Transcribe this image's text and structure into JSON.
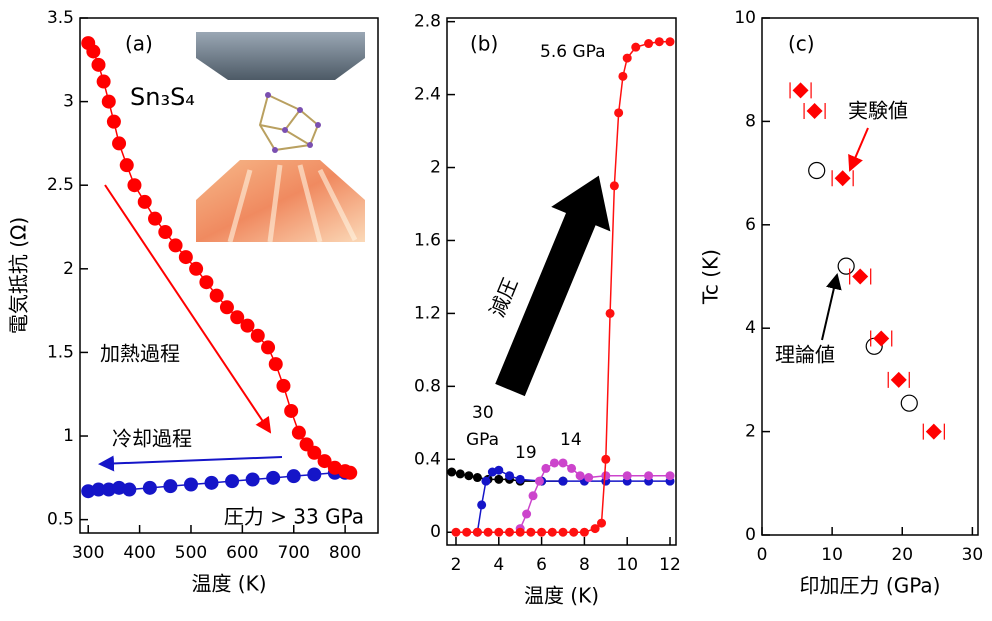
{
  "chart_data": [
    {
      "type": "line",
      "x_label": "温度 (K)",
      "y_label": "電気抵抗 (Ω)",
      "xlim": [
        284,
        864
      ],
      "ylim": [
        0.42,
        3.5
      ],
      "xticks": [
        300,
        400,
        500,
        600,
        700,
        800
      ],
      "yticks": [
        0.5,
        1,
        1.5,
        2,
        2.5,
        3,
        3.5
      ],
      "series": [
        {
          "name": "加熱過程",
          "color": "#ff0000",
          "x": [
            300,
            310,
            320,
            330,
            340,
            350,
            360,
            375,
            390,
            410,
            430,
            450,
            470,
            490,
            510,
            530,
            550,
            570,
            590,
            610,
            630,
            650,
            665,
            680,
            695,
            710,
            725,
            740,
            760,
            780,
            800,
            810
          ],
          "values": [
            3.35,
            3.3,
            3.22,
            3.12,
            3.0,
            2.88,
            2.75,
            2.62,
            2.5,
            2.4,
            2.3,
            2.22,
            2.14,
            2.07,
            2.0,
            1.92,
            1.84,
            1.77,
            1.71,
            1.66,
            1.6,
            1.53,
            1.43,
            1.3,
            1.15,
            1.02,
            0.95,
            0.9,
            0.85,
            0.81,
            0.79,
            0.78
          ]
        },
        {
          "name": "冷却過程",
          "color": "#1515c8",
          "x": [
            300,
            320,
            340,
            360,
            380,
            420,
            460,
            500,
            540,
            580,
            620,
            660,
            700,
            740,
            780,
            800
          ],
          "values": [
            0.67,
            0.68,
            0.68,
            0.69,
            0.68,
            0.69,
            0.7,
            0.71,
            0.72,
            0.73,
            0.74,
            0.75,
            0.76,
            0.77,
            0.78,
            0.78
          ]
        }
      ],
      "annotations": {
        "panel": "(a)",
        "sample": "Sn₃S₄",
        "pressure": "圧力 > 33 GPa"
      }
    },
    {
      "type": "line",
      "x_label": "温度 (K)",
      "xlim": [
        1.58,
        12.28
      ],
      "ylim": [
        -0.07,
        2.82
      ],
      "xticks": [
        2,
        4,
        6,
        8,
        10,
        12
      ],
      "yticks": [
        0,
        0.4,
        0.8,
        1.2,
        1.6,
        2,
        2.4,
        2.8
      ],
      "series": [
        {
          "name": "5.6 GPa",
          "color": "#ff1010",
          "x": [
            2,
            2.5,
            3,
            3.5,
            4,
            4.5,
            5,
            5.5,
            6,
            6.5,
            7,
            7.5,
            8,
            8.5,
            8.8,
            9.0,
            9.2,
            9.4,
            9.6,
            9.8,
            10.0,
            10.4,
            11,
            11.5,
            12
          ],
          "values": [
            0,
            0,
            0,
            0,
            0,
            0,
            0,
            0,
            0,
            0,
            0,
            0,
            0,
            0.02,
            0.05,
            0.4,
            1.2,
            1.9,
            2.3,
            2.5,
            2.6,
            2.66,
            2.68,
            2.69,
            2.69
          ]
        },
        {
          "name": "14",
          "color": "#cc44cc",
          "x": [
            5.0,
            5.3,
            5.6,
            5.9,
            6.2,
            6.6,
            7.0,
            7.4,
            7.8,
            8.2,
            9,
            10,
            11,
            12
          ],
          "values": [
            0.02,
            0.1,
            0.2,
            0.28,
            0.35,
            0.38,
            0.38,
            0.35,
            0.31,
            0.3,
            0.31,
            0.31,
            0.31,
            0.31
          ]
        },
        {
          "name": "19",
          "color": "#1515c8",
          "x": [
            3.0,
            3.2,
            3.4,
            3.7,
            4.0,
            4.5,
            5,
            6,
            7,
            8,
            9,
            10,
            11,
            12
          ],
          "values": [
            0.0,
            0.15,
            0.28,
            0.33,
            0.34,
            0.31,
            0.29,
            0.28,
            0.28,
            0.28,
            0.28,
            0.28,
            0.28,
            0.28
          ]
        },
        {
          "name": "30",
          "color": "#000000",
          "x": [
            1.8,
            2.2,
            2.6,
            3,
            3.5,
            4,
            4.5,
            5,
            6,
            7
          ],
          "values": [
            0.33,
            0.32,
            0.31,
            0.3,
            0.29,
            0.29,
            0.29,
            0.28,
            0.28,
            0.28
          ]
        }
      ],
      "annotations": {
        "panel": "(b)",
        "unit": "GPa",
        "arrow": "減圧"
      }
    },
    {
      "type": "scatter",
      "x_label": "印加圧力 (GPa)",
      "y_label": "Tc (K)",
      "xlim": [
        0,
        30.8
      ],
      "ylim": [
        0,
        10
      ],
      "xticks": [
        0,
        10,
        20,
        30
      ],
      "yticks": [
        0,
        2,
        4,
        6,
        8,
        10
      ],
      "series": [
        {
          "name": "実験値",
          "color": "#ff0000",
          "marker": "diamond",
          "x": [
            5.5,
            7.5,
            11.5,
            14,
            17,
            19.5,
            24.5
          ],
          "values": [
            8.6,
            8.2,
            6.9,
            5.0,
            3.8,
            3.0,
            2.0
          ],
          "x_err": [
            1.5,
            1.5,
            1.5,
            1.5,
            1.5,
            1.5,
            1.5
          ]
        },
        {
          "name": "理論値",
          "color": "#000000",
          "marker": "circle-open",
          "x": [
            7.8,
            12,
            16,
            21
          ],
          "values": [
            7.05,
            5.2,
            3.65,
            2.55
          ]
        }
      ],
      "annotations": {
        "panel": "(c)"
      }
    }
  ]
}
